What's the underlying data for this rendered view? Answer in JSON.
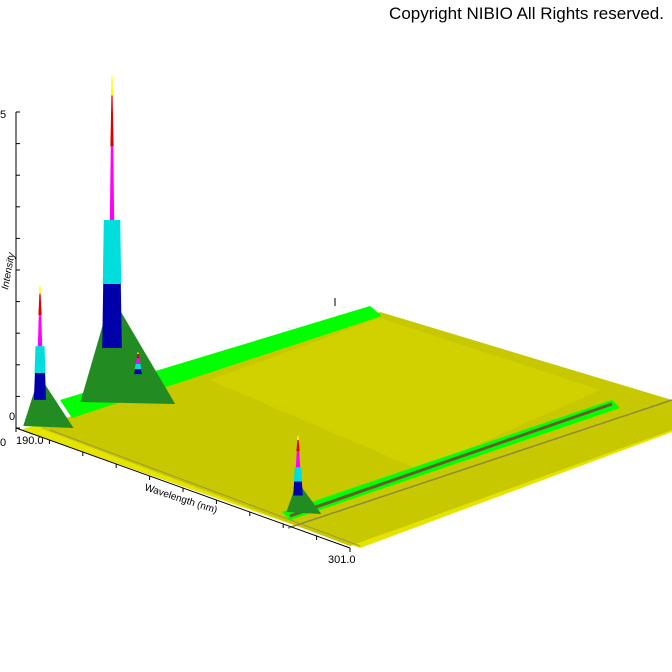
{
  "copyright": "Copyright NIBIO All Rights reserved.",
  "chart_data": {
    "type": "area",
    "title": "",
    "xlabel": "Wavelength (nm)",
    "ylabel": "Intensity",
    "x_range": [
      190.0,
      301.0
    ],
    "x_tick_labels": [
      "190.0",
      "301.0"
    ],
    "y_tick_labels": [
      "0",
      "5"
    ],
    "z_tick_labels": [
      "0"
    ],
    "colors": {
      "surface": "#c8c800",
      "surface_light": "#d8d800",
      "floor": "#e4e400",
      "ridge": "#00ff00",
      "level_1": "#228b22",
      "level_2": "#0000aa",
      "level_3": "#00dddd",
      "level_4": "#ff00ff",
      "level_5": "#dd0000",
      "level_6": "#ffff00"
    },
    "peaks": [
      {
        "wavelength": 190.0,
        "relative_height": 0.42
      },
      {
        "wavelength": 191.5,
        "relative_height": 1.0
      },
      {
        "wavelength": 198.0,
        "relative_height": 0.08
      },
      {
        "wavelength": 255.0,
        "relative_height": 0.22
      }
    ]
  }
}
